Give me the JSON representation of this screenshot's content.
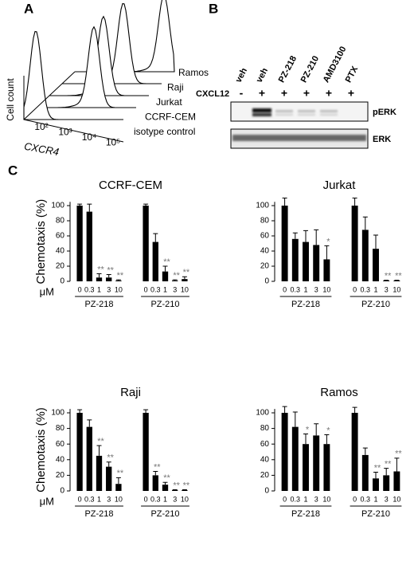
{
  "panel_labels": [
    "A",
    "B",
    "C"
  ],
  "flow": {
    "y_label": "Cell count",
    "x_label": "CXCR4",
    "x_ticks": [
      "10²",
      "10³",
      "10⁴",
      "10⁵"
    ],
    "samples": [
      "isotype control",
      "CCRF-CEM",
      "Jurkat",
      "Raji",
      "Ramos"
    ]
  },
  "blot": {
    "lanes": [
      "veh",
      "veh",
      "PZ-218",
      "PZ-210",
      "AMD3100",
      "PTX"
    ],
    "treatment": "CXCL12",
    "signs": [
      "-",
      "+",
      "+",
      "+",
      "+",
      "+"
    ],
    "bands": [
      "pERK",
      "ERK"
    ]
  },
  "chart_data": [
    {
      "type": "bar",
      "title": "CCRF-CEM",
      "ylabel": "Chemotaxis (%)",
      "unit_label": "μM",
      "categories": [
        "0",
        "0.3",
        "1",
        "3",
        "10",
        "0",
        "0.3",
        "1",
        "3",
        "10"
      ],
      "groups": [
        "PZ-218",
        "PZ-210"
      ],
      "values": [
        100,
        92,
        5,
        5,
        1,
        100,
        52,
        13,
        1,
        3
      ],
      "errors": [
        2,
        10,
        5,
        4,
        1,
        2,
        11,
        7,
        1,
        3
      ],
      "annotations": [
        null,
        null,
        "**",
        "**",
        "**",
        null,
        null,
        "**",
        "**",
        "**"
      ],
      "color": "#000000",
      "ylim": [
        0,
        105
      ],
      "yticks": [
        0,
        20,
        40,
        60,
        80,
        100
      ]
    },
    {
      "type": "bar",
      "title": "Jurkat",
      "categories": [
        "0",
        "0.3",
        "1",
        "3",
        "10",
        "0",
        "0.3",
        "1",
        "3",
        "10"
      ],
      "groups": [
        "PZ-218",
        "PZ-210"
      ],
      "values": [
        100,
        56,
        52,
        48,
        29,
        100,
        68,
        43,
        1,
        1
      ],
      "errors": [
        10,
        8,
        15,
        20,
        18,
        10,
        17,
        18,
        0.5,
        0.5
      ],
      "annotations": [
        null,
        null,
        null,
        null,
        "*",
        null,
        null,
        null,
        "**",
        "**"
      ],
      "color": "#000000",
      "ylim": [
        0,
        105
      ],
      "yticks": [
        0,
        20,
        40,
        60,
        80,
        100
      ]
    },
    {
      "type": "bar",
      "title": "Raji",
      "ylabel": "Chemotaxis (%)",
      "unit_label": "μM",
      "categories": [
        "0",
        "0.3",
        "1",
        "3",
        "10",
        "0",
        "0.3",
        "1",
        "3",
        "10"
      ],
      "groups": [
        "PZ-218",
        "PZ-210"
      ],
      "values": [
        100,
        82,
        45,
        31,
        9,
        100,
        20,
        8,
        1,
        1
      ],
      "errors": [
        4,
        9,
        13,
        6,
        8,
        4,
        5,
        3,
        0.5,
        0.5
      ],
      "annotations": [
        null,
        null,
        "**",
        "**",
        "**",
        null,
        "**",
        "**",
        "**",
        "**"
      ],
      "color": "#000000",
      "ylim": [
        0,
        105
      ],
      "yticks": [
        0,
        20,
        40,
        60,
        80,
        100
      ]
    },
    {
      "type": "bar",
      "title": "Ramos",
      "categories": [
        "0",
        "0.3",
        "1",
        "3",
        "10",
        "0",
        "0.3",
        "1",
        "3",
        "10"
      ],
      "groups": [
        "PZ-218",
        "PZ-210"
      ],
      "values": [
        100,
        82,
        60,
        71,
        60,
        100,
        46,
        16,
        20,
        25
      ],
      "errors": [
        8,
        19,
        13,
        15,
        12,
        7,
        9,
        8,
        9,
        17
      ],
      "annotations": [
        null,
        null,
        "*",
        null,
        "*",
        null,
        null,
        "**",
        "**",
        "**"
      ],
      "color": "#000000",
      "ylim": [
        0,
        105
      ],
      "yticks": [
        0,
        20,
        40,
        60,
        80,
        100
      ]
    }
  ]
}
